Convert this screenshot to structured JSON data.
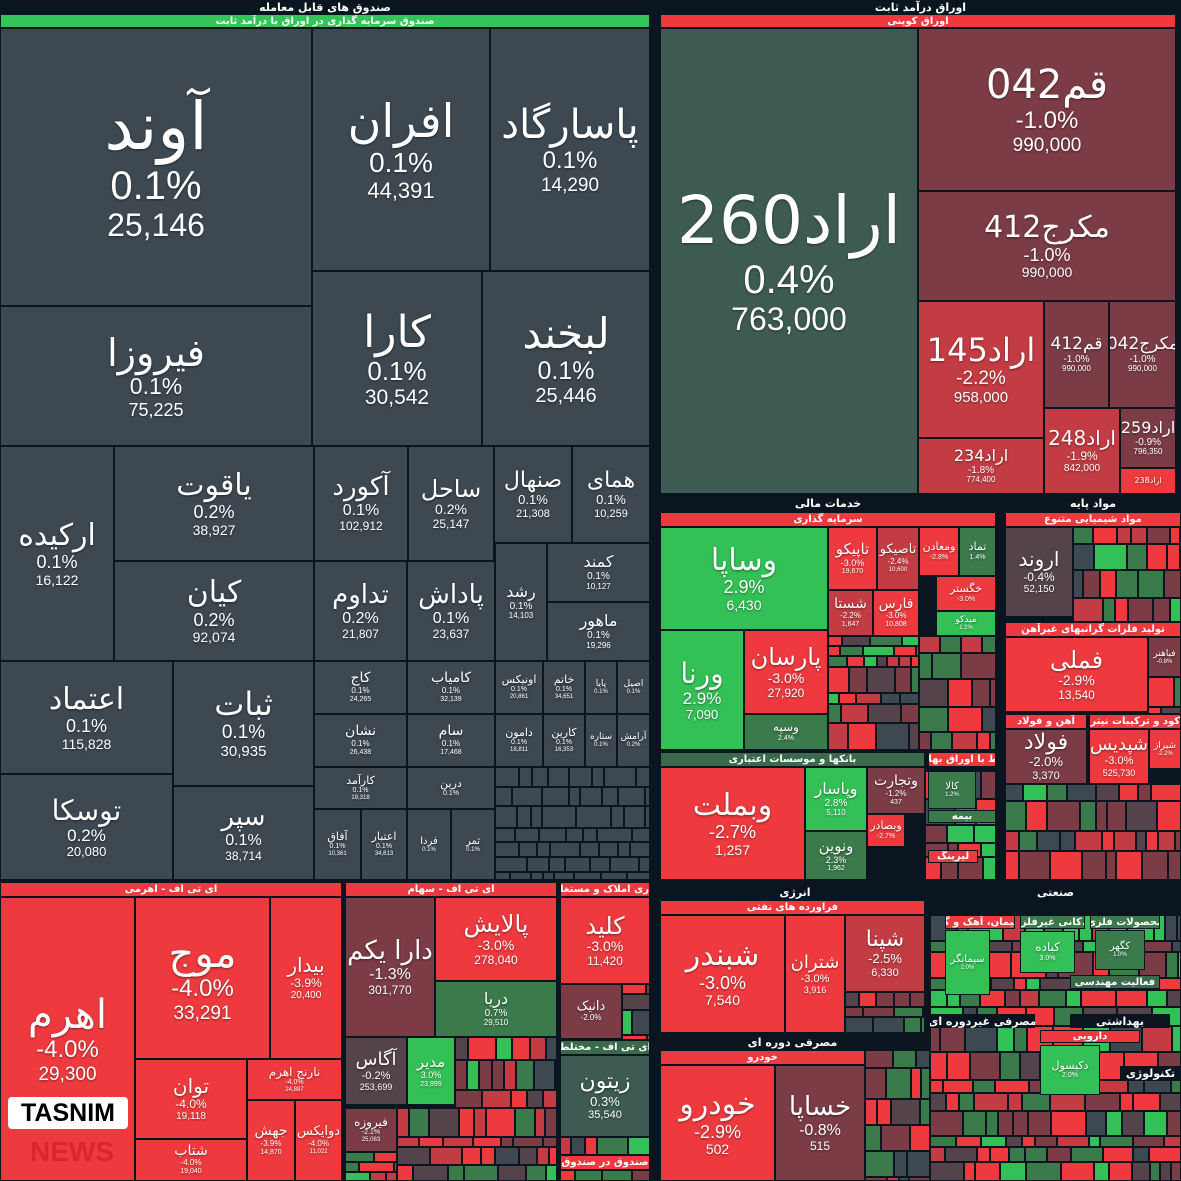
{
  "palette": {
    "neutral": "#3d4851",
    "green": "#33c056",
    "dgreen": "#3a7a4b",
    "red": "#ee3a3e",
    "dred": "#c33c43",
    "maroon": "#7b3c46",
    "brown": "#54434b",
    "teal": "#3d5a53"
  },
  "headers": [
    {
      "label": "صندوق های قابل معامله",
      "type": "title"
    },
    {
      "label": "صندوق سرمایه گذاری در اوراق با درآمد ثابت",
      "type": "sub",
      "color": "#35c45a"
    },
    {
      "label": "اوراق درآمد ثابت",
      "type": "title"
    },
    {
      "label": "اوراق کوپنی",
      "type": "sub",
      "color": "#ee3a3e"
    },
    {
      "label": "خدمات مالی",
      "type": "title"
    },
    {
      "label": "سرمایه گذاری",
      "type": "sub",
      "color": "#ee3a3e"
    },
    {
      "label": "مواد پایه",
      "type": "title"
    },
    {
      "label": "مواد شیمیایی متنوع",
      "type": "sub",
      "color": "#ee3a3e"
    },
    {
      "label": "تولید فلزات گرانبهای غیرآهن",
      "type": "sub",
      "color": "#ee3a3e"
    },
    {
      "label": "آهن و فولاد",
      "type": "sub",
      "color": "#ee3a3e"
    },
    {
      "label": "...د کود و ترکیبات نیتروژن",
      "type": "sub",
      "color": "#ee3a3e"
    },
    {
      "label": "بانکها و موسسات اعتباری",
      "type": "sub",
      "color": "#3a6a4b"
    },
    {
      "label": "...ط با اوراق بهادار",
      "type": "sub",
      "color": "#ee3a3e"
    },
    {
      "label": "بیمه",
      "type": "sub",
      "color": "#3a7a4b"
    },
    {
      "label": "لیزینگ",
      "type": "sub",
      "color": "#ee3a3e"
    },
    {
      "label": "انرژی",
      "type": "title"
    },
    {
      "label": "فراورده های نفتی",
      "type": "sub",
      "color": "#ee3a3e"
    },
    {
      "label": "صنعتی",
      "type": "title"
    },
    {
      "label": "مصرفی دوره ای",
      "type": "title"
    },
    {
      "label": "خودرو",
      "type": "sub",
      "color": "#ee3a3e"
    },
    {
      "label": "مصرفی غیردوره ای",
      "type": "title"
    },
    {
      "label": "بهداشتی",
      "type": "title"
    },
    {
      "label": "دارویی",
      "type": "sub",
      "color": "#ee3a3e"
    },
    {
      "label": "تکنولوژی",
      "type": "title"
    },
    {
      "label": "ای تی اف - اهرمی",
      "type": "sub",
      "color": "#ee3a3e"
    },
    {
      "label": "ای تی اف - سهام",
      "type": "sub",
      "color": "#ee3a3e"
    },
    {
      "label": "...اری املاک و مستغلات",
      "type": "sub",
      "color": "#ee3a3e"
    },
    {
      "label": "ای تی اف - مختلط",
      "type": "sub",
      "color": "#3a6a4b"
    },
    {
      "label": "صندوق در صندوق",
      "type": "sub",
      "color": "#ee3a3e"
    },
    {
      "label": "سیمان، آهک و گچ",
      "type": "sub",
      "color": "#ee3a3e"
    },
    {
      "label": "...کانی غیرفلزی",
      "type": "sub",
      "color": "#3a7a4b"
    },
    {
      "label": "محصولات فلزی",
      "type": "sub",
      "color": "#3a7a4b"
    },
    {
      "label": "فعالیت مهندسی",
      "type": "sub",
      "color": "#3a6a4b"
    }
  ],
  "tiles": [
    {
      "name": "آوند",
      "pct": "0.1%",
      "value": "25,146",
      "color": "neutral"
    },
    {
      "name": "فیروزا",
      "pct": "0.1%",
      "value": "75,225",
      "color": "neutral"
    },
    {
      "name": "افران",
      "pct": "0.1%",
      "value": "44,391",
      "color": "neutral"
    },
    {
      "name": "پاسارگاد",
      "pct": "0.1%",
      "value": "14,290",
      "color": "neutral"
    },
    {
      "name": "کارا",
      "pct": "0.1%",
      "value": "30,542",
      "color": "neutral"
    },
    {
      "name": "لبخند",
      "pct": "0.1%",
      "value": "25,446",
      "color": "neutral"
    },
    {
      "name": "ارکیده",
      "pct": "0.1%",
      "value": "16,122",
      "color": "neutral"
    },
    {
      "name": "یاقوت",
      "pct": "0.2%",
      "value": "38,927",
      "color": "neutral"
    },
    {
      "name": "کیان",
      "pct": "0.2%",
      "value": "92,074",
      "color": "neutral"
    },
    {
      "name": "آکورد",
      "pct": "0.1%",
      "value": "102,912",
      "color": "neutral"
    },
    {
      "name": "ساحل",
      "pct": "0.2%",
      "value": "25,147",
      "color": "neutral"
    },
    {
      "name": "صنهال",
      "pct": "0.1%",
      "value": "21,308",
      "color": "neutral"
    },
    {
      "name": "همای",
      "pct": "0.1%",
      "value": "10,259",
      "color": "neutral"
    },
    {
      "name": "تداوم",
      "pct": "0.2%",
      "value": "21,807",
      "color": "neutral"
    },
    {
      "name": "پاداش",
      "pct": "0.1%",
      "value": "23,637",
      "color": "neutral"
    },
    {
      "name": "رشد",
      "pct": "0.1%",
      "value": "14,103",
      "color": "neutral"
    },
    {
      "name": "کمند",
      "pct": "0.1%",
      "value": "10,127",
      "color": "neutral"
    },
    {
      "name": "ماهور",
      "pct": "0.1%",
      "value": "19,296",
      "color": "neutral"
    },
    {
      "name": "اعتماد",
      "pct": "0.1%",
      "value": "115,828",
      "color": "neutral"
    },
    {
      "name": "ثبات",
      "pct": "0.1%",
      "value": "30,935",
      "color": "neutral"
    },
    {
      "name": "توسکا",
      "pct": "0.2%",
      "value": "20,080",
      "color": "neutral"
    },
    {
      "name": "سپر",
      "pct": "0.1%",
      "value": "38,714",
      "color": "neutral"
    },
    {
      "name": "کاج",
      "pct": "0.1%",
      "value": "24,265",
      "color": "neutral"
    },
    {
      "name": "کامیاب",
      "pct": "0.1%",
      "value": "32,139",
      "color": "neutral"
    },
    {
      "name": "اونیکس",
      "pct": "0.1%",
      "value": "20,861",
      "color": "neutral"
    },
    {
      "name": "خاتم",
      "pct": "0.1%",
      "value": "34,651",
      "color": "neutral"
    },
    {
      "name": "پایا",
      "pct": "0.1%",
      "value": "",
      "color": "neutral"
    },
    {
      "name": "اصیل",
      "pct": "0.1%",
      "value": "",
      "color": "neutral"
    },
    {
      "name": "نشان",
      "pct": "0.1%",
      "value": "26,438",
      "color": "neutral"
    },
    {
      "name": "سام",
      "pct": "0.1%",
      "value": "17,468",
      "color": "neutral"
    },
    {
      "name": "دامون",
      "pct": "0.1%",
      "value": "18,811",
      "color": "neutral"
    },
    {
      "name": "کارین",
      "pct": "0.1%",
      "value": "16,353",
      "color": "neutral"
    },
    {
      "name": "ستاره",
      "pct": "0.1%",
      "value": "",
      "color": "neutral"
    },
    {
      "name": "آرامش",
      "pct": "0.2%",
      "value": "",
      "color": "neutral"
    },
    {
      "name": "کارآمد",
      "pct": "0.1%",
      "value": "19,318",
      "color": "neutral"
    },
    {
      "name": "درین",
      "pct": "0.1%",
      "value": "",
      "color": "neutral"
    },
    {
      "name": "آفاق",
      "pct": "0.1%",
      "value": "10,361",
      "color": "neutral"
    },
    {
      "name": "اعتبار",
      "pct": "0.1%",
      "value": "34,613",
      "color": "neutral"
    },
    {
      "name": "فردا",
      "pct": "0.1%",
      "value": "",
      "color": "neutral"
    },
    {
      "name": "ثمر",
      "pct": "0.1%",
      "value": "",
      "color": "neutral"
    },
    {
      "name": "اراد260",
      "pct": "0.4%",
      "value": "763,000",
      "color": "teal"
    },
    {
      "name": "قم042",
      "pct": "-1.0%",
      "value": "990,000",
      "color": "maroon"
    },
    {
      "name": "مکرج412",
      "pct": "-1.0%",
      "value": "990,000",
      "color": "maroon"
    },
    {
      "name": "اراد145",
      "pct": "-2.2%",
      "value": "958,000",
      "color": "dred"
    },
    {
      "name": "قم412",
      "pct": "-1.0%",
      "value": "990,000",
      "color": "maroon"
    },
    {
      "name": "مکرج042",
      "pct": "-1.0%",
      "value": "990,000",
      "color": "maroon"
    },
    {
      "name": "اراد234",
      "pct": "-1.8%",
      "value": "774,400",
      "color": "dred"
    },
    {
      "name": "اراد248",
      "pct": "-1.9%",
      "value": "842,000",
      "color": "dred"
    },
    {
      "name": "اراد259",
      "pct": "-0.9%",
      "value": "796,350",
      "color": "maroon"
    },
    {
      "name": "اراد238",
      "pct": "",
      "value": "",
      "color": "red"
    },
    {
      "name": "وساپا",
      "pct": "2.9%",
      "value": "6,430",
      "color": "green"
    },
    {
      "name": "ورنا",
      "pct": "2.9%",
      "value": "7,090",
      "color": "green"
    },
    {
      "name": "پارسان",
      "pct": "-3.0%",
      "value": "27,920",
      "color": "red"
    },
    {
      "name": "وسپه",
      "pct": "2.4%",
      "value": "",
      "color": "dgreen"
    },
    {
      "name": "تاپیکو",
      "pct": "-3.0%",
      "value": "19,670",
      "color": "red"
    },
    {
      "name": "تاصیکو",
      "pct": "-2.4%",
      "value": "10,600",
      "color": "dred"
    },
    {
      "name": "ومعادن",
      "pct": "-2.8%",
      "value": "",
      "color": "red"
    },
    {
      "name": "تماد",
      "pct": "1.4%",
      "value": "",
      "color": "dgreen"
    },
    {
      "name": "شستا",
      "pct": "-2.2%",
      "value": "1,647",
      "color": "dred"
    },
    {
      "name": "فارس",
      "pct": "-3.0%",
      "value": "10,808",
      "color": "red"
    },
    {
      "name": "خگستر",
      "pct": "-3.0%",
      "value": "",
      "color": "red"
    },
    {
      "name": "میدکو",
      "pct": "1.1%",
      "value": "",
      "color": "green"
    },
    {
      "name": "وبملت",
      "pct": "-2.7%",
      "value": "1,257",
      "color": "red"
    },
    {
      "name": "وپاسار",
      "pct": "2.8%",
      "value": "5,110",
      "color": "green"
    },
    {
      "name": "ونوین",
      "pct": "2.3%",
      "value": "1,962",
      "color": "dgreen"
    },
    {
      "name": "وتجارت",
      "pct": "-1.2%",
      "value": "437",
      "color": "maroon"
    },
    {
      "name": "وبصادر",
      "pct": "-2.7%",
      "value": "",
      "color": "red"
    },
    {
      "name": "کالا",
      "pct": "1.2%",
      "value": "",
      "color": "dgreen"
    },
    {
      "name": "اروند",
      "pct": "-0.4%",
      "value": "52,150",
      "color": "brown"
    },
    {
      "name": "فملی",
      "pct": "-2.9%",
      "value": "13,540",
      "color": "red"
    },
    {
      "name": "فباهنر",
      "pct": "-0.8%",
      "value": "",
      "color": "maroon"
    },
    {
      "name": "فولاد",
      "pct": "-2.0%",
      "value": "3,370",
      "color": "maroon"
    },
    {
      "name": "شپدیس",
      "pct": "-3.0%",
      "value": "525,730",
      "color": "red"
    },
    {
      "name": "شیراز",
      "pct": "-2.2%",
      "value": "",
      "color": "red"
    },
    {
      "name": "اهرم",
      "pct": "-4.0%",
      "value": "29,300",
      "color": "red"
    },
    {
      "name": "موج",
      "pct": "-4.0%",
      "value": "33,291",
      "color": "red"
    },
    {
      "name": "بیدار",
      "pct": "-3.9%",
      "value": "20,400",
      "color": "red"
    },
    {
      "name": "توان",
      "pct": "-4.0%",
      "value": "19,118",
      "color": "red"
    },
    {
      "name": "نارنج اهرم",
      "pct": "-4.0%",
      "value": "24,887",
      "color": "red"
    },
    {
      "name": "شتاب",
      "pct": "-4.0%",
      "value": "19,040",
      "color": "red"
    },
    {
      "name": "جهش",
      "pct": "-3.9%",
      "value": "14,870",
      "color": "red"
    },
    {
      "name": "دوایکس",
      "pct": "-4.0%",
      "value": "11,022",
      "color": "red"
    },
    {
      "name": "دارا یکم",
      "pct": "-1.3%",
      "value": "301,770",
      "color": "maroon"
    },
    {
      "name": "پالایش",
      "pct": "-3.0%",
      "value": "278,040",
      "color": "red"
    },
    {
      "name": "دریا",
      "pct": "0.7%",
      "value": "29,510",
      "color": "dgreen"
    },
    {
      "name": "آگاس",
      "pct": "-0.2%",
      "value": "253,699",
      "color": "brown"
    },
    {
      "name": "مدیر",
      "pct": "3.0%",
      "value": "23,999",
      "color": "green"
    },
    {
      "name": "فیروزه",
      "pct": "-2.1%",
      "value": "25,083",
      "color": "maroon"
    },
    {
      "name": "کلید",
      "pct": "-3.0%",
      "value": "11,420",
      "color": "red"
    },
    {
      "name": "دانیک",
      "pct": "-2.0%",
      "value": "",
      "color": "maroon"
    },
    {
      "name": "زیتون",
      "pct": "0.3%",
      "value": "35,540",
      "color": "teal"
    },
    {
      "name": "شبندر",
      "pct": "-3.0%",
      "value": "7,540",
      "color": "red"
    },
    {
      "name": "شتران",
      "pct": "-3.0%",
      "value": "3,916",
      "color": "red"
    },
    {
      "name": "شپنا",
      "pct": "-2.5%",
      "value": "6,330",
      "color": "dred"
    },
    {
      "name": "خودرو",
      "pct": "-2.9%",
      "value": "502",
      "color": "red"
    },
    {
      "name": "خساپا",
      "pct": "-0.8%",
      "value": "515",
      "color": "maroon"
    },
    {
      "name": "کباده",
      "pct": "3.0%",
      "value": "",
      "color": "green"
    },
    {
      "name": "سیمانگر",
      "pct": "2.0%",
      "value": "",
      "color": "green"
    },
    {
      "name": "دکیسول",
      "pct": "2.0%",
      "value": "",
      "color": "green"
    },
    {
      "name": "کگهر",
      "pct": "1.0%",
      "value": "",
      "color": "dgreen"
    }
  ],
  "watermark": {
    "brand": "TASNIM",
    "suffix": "NEWS"
  }
}
